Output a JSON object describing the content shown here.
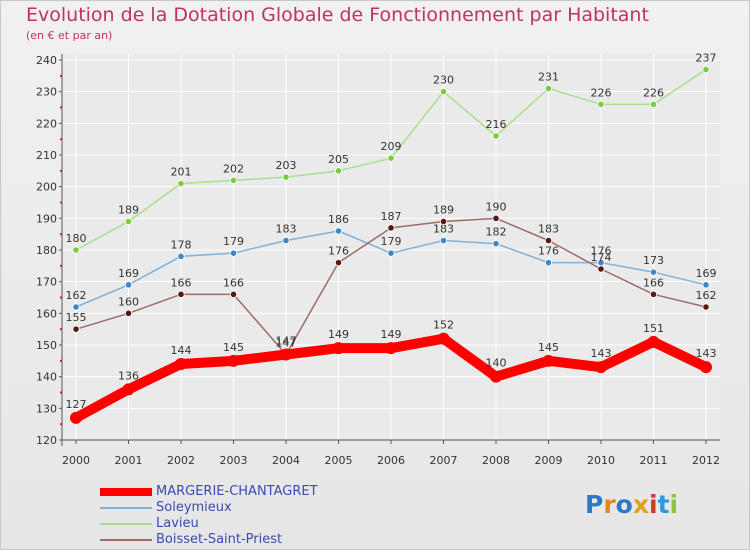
{
  "title": "Evolution de la Dotation Globale de Fonctionnement par Habitant",
  "subtitle": "(en € et par an)",
  "brand": "Proxiti",
  "colors": {
    "title": "#c0306a",
    "legend_text": "#3a4ab0",
    "axis": "#333333",
    "grid": "#ffffff"
  },
  "chart_data": {
    "type": "line",
    "title": "Evolution de la Dotation Globale de Fonctionnement par Habitant",
    "subtitle": "(en € et par an)",
    "xlabel": "",
    "ylabel": "",
    "ylim": [
      120,
      240
    ],
    "yticks": [
      "120",
      "130",
      "140",
      "150",
      "160",
      "170",
      "180",
      "190",
      "200",
      "210",
      "220",
      "230",
      "240"
    ],
    "grid": true,
    "legend_position": "bottom-left",
    "categories": [
      "2000",
      "2001",
      "2002",
      "2003",
      "2004",
      "2005",
      "2006",
      "2007",
      "2008",
      "2009",
      "2010",
      "2011",
      "2012"
    ],
    "series": [
      {
        "name": "MARGERIE-CHANTAGRET",
        "color": "#ff0000",
        "point_color": "#ff0000",
        "emphasis": true,
        "values": [
          127,
          136,
          144,
          145,
          147,
          149,
          149,
          152,
          140,
          145,
          143,
          151,
          143
        ]
      },
      {
        "name": "Soleymieux",
        "color": "#7fb1d9",
        "point_color": "#3a87c9",
        "emphasis": false,
        "values": [
          162,
          169,
          178,
          179,
          183,
          186,
          179,
          183,
          182,
          176,
          176,
          173,
          169
        ]
      },
      {
        "name": "Lavieu",
        "color": "#a6df8c",
        "point_color": "#78cc3e",
        "emphasis": false,
        "values": [
          180,
          189,
          201,
          202,
          203,
          205,
          209,
          230,
          216,
          231,
          226,
          226,
          237
        ]
      },
      {
        "name": "Boisset-Saint-Priest",
        "color": "#a06a6a",
        "point_color": "#5a1515",
        "emphasis": false,
        "values": [
          155,
          160,
          166,
          166,
          147,
          176,
          187,
          189,
          190,
          183,
          174,
          166,
          162
        ]
      }
    ]
  }
}
